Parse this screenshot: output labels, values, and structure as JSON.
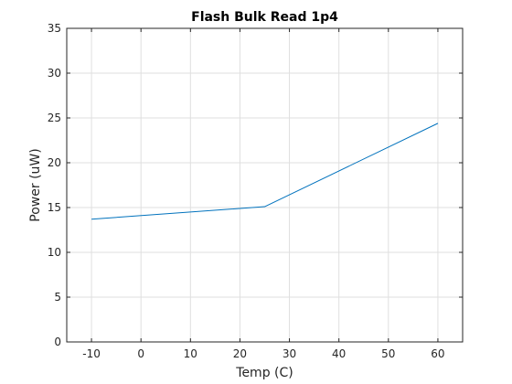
{
  "chart_data": {
    "type": "line",
    "title": "Flash Bulk Read 1p4",
    "xlabel": "Temp (C)",
    "ylabel": "Power (uW)",
    "xlim": [
      -15,
      65
    ],
    "ylim": [
      0,
      35
    ],
    "xticks": [
      "-10",
      "0",
      "10",
      "20",
      "30",
      "40",
      "50",
      "60"
    ],
    "yticks": [
      "0",
      "5",
      "10",
      "15",
      "20",
      "25",
      "30",
      "35"
    ],
    "grid": true,
    "series": [
      {
        "color": "#0072bd",
        "x": [
          -10,
          25,
          60
        ],
        "y": [
          13.7,
          15.1,
          24.4
        ]
      }
    ]
  }
}
